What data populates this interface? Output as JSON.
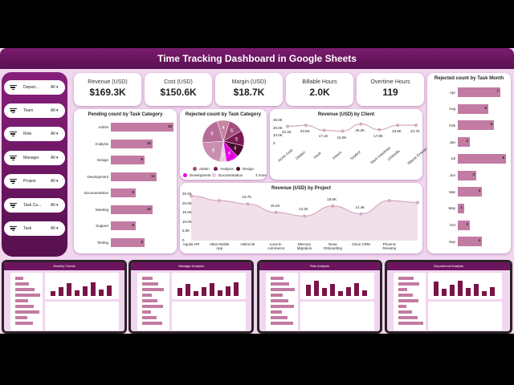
{
  "title": "Time Tracking Dashboard in Google Sheets",
  "filters": [
    {
      "name": "Depart...",
      "value": "All"
    },
    {
      "name": "Team",
      "value": "All"
    },
    {
      "name": "Role",
      "value": "All"
    },
    {
      "name": "Manager",
      "value": "All"
    },
    {
      "name": "Project",
      "value": "All"
    },
    {
      "name": "Task Ca...",
      "value": "All"
    },
    {
      "name": "Task",
      "value": "All"
    }
  ],
  "kpis": [
    {
      "label": "Revenue (USD)",
      "value": "$169.3K"
    },
    {
      "label": "Cost (USD)",
      "value": "$150.6K"
    },
    {
      "label": "Margin (USD)",
      "value": "$18.7K"
    },
    {
      "label": "Billable Hours",
      "value": "2.0K"
    },
    {
      "label": "Overtime Hours",
      "value": "119"
    }
  ],
  "chart_data": [
    {
      "type": "bar",
      "orientation": "horizontal",
      "title": "Pending count by Task Category",
      "categories": [
        "Admin",
        "Analysis",
        "Design",
        "Development",
        "Documentation",
        "Meeting",
        "Support",
        "Testing"
      ],
      "values": [
        15,
        10,
        8,
        11,
        6,
        10,
        6,
        8
      ]
    },
    {
      "type": "pie",
      "title": "Rejected count by Task Category",
      "slices": [
        {
          "label": "Admin",
          "value": 5,
          "color": "#a34d7e"
        },
        {
          "label": "Analysis",
          "value": 5,
          "color": "#7a1a52"
        },
        {
          "label": "Design",
          "value": 4,
          "color": "#4a0a32"
        },
        {
          "label": "Development",
          "value": 4,
          "color": "#e600e6"
        },
        {
          "label": "Documentation",
          "value": 2,
          "color": "#e8c8dc"
        },
        {
          "label": "Meeting",
          "value": 9,
          "color": "#c98fb1"
        },
        {
          "label": "Support",
          "value": 9,
          "color": "#b56e97"
        },
        {
          "label": "Testing",
          "value": 4,
          "color": "#c3869f"
        }
      ],
      "legend": [
        "Admin",
        "Analysis",
        "Design",
        "Development",
        "Documentation"
      ],
      "legend_more": "3 more"
    },
    {
      "type": "line",
      "title": "Revenue (USD) by Client",
      "categories": [
        "Acme Corp",
        "Globex",
        "Hooli",
        "Initech",
        "Soylent",
        "Stark Industries",
        "Umbrella",
        "Wayne Enterpr..."
      ],
      "values": [
        22300,
        23500,
        17100,
        16000,
        25200,
        17800,
        23600,
        23700
      ],
      "labels": [
        "22.3K",
        "23.5K",
        "17.1K",
        "16.0K",
        "25.2K",
        "17.8K",
        "23.6K",
        "23.7K"
      ],
      "yticks": [
        "30.0K",
        "20.0K",
        "10.0K",
        "0"
      ],
      "ylim": [
        0,
        30000
      ]
    },
    {
      "type": "area",
      "title": "Revenue (USD) by Project",
      "categories": [
        "Aquila API",
        "Atlas Mobile App",
        "Helios BI",
        "Luna E-commerce",
        "Mercury Migration",
        "Nova Onboarding",
        "Orion CRM",
        "Phoenix Revamp",
        ""
      ],
      "values": [
        24000,
        21500,
        19700,
        15200,
        13200,
        18600,
        14400,
        21500,
        20500
      ],
      "labels": [
        "",
        "",
        "19.7K",
        "15.2K",
        "13.2K",
        "18.6K",
        "14.4K",
        "",
        ""
      ],
      "yticks": [
        "25.0K",
        "20.0K",
        "15.0K",
        "10.0K",
        "5.0K",
        "0"
      ],
      "ylim": [
        0,
        25000
      ]
    },
    {
      "type": "bar",
      "orientation": "horizontal",
      "title": "Rejected count by Task Month",
      "categories": [
        "Apr",
        "Aug",
        "Feb",
        "Jan",
        "Jul",
        "Jun",
        "Mar",
        "May",
        "Oct",
        "Sep"
      ],
      "values": [
        7,
        5,
        6,
        2,
        8,
        3,
        4,
        1,
        2,
        4
      ]
    }
  ],
  "thumbnails": [
    {
      "title": "Monthly Trends"
    },
    {
      "title": "Manager Analysis"
    },
    {
      "title": "Role Analysis"
    },
    {
      "title": "Department Analysis"
    }
  ],
  "colors": {
    "header": "#6d145f",
    "background": "#f1d6ef",
    "bar": "#c27ba2",
    "line": "#c99ab5"
  }
}
